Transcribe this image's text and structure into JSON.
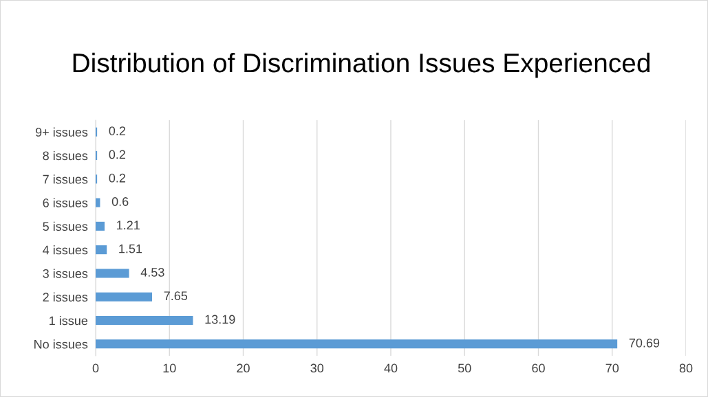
{
  "chart_data": {
    "type": "bar",
    "orientation": "horizontal",
    "title": "Distribution of Discrimination Issues Experienced",
    "categories": [
      "9+ issues",
      "8 issues",
      "7 issues",
      "6 issues",
      "5 issues",
      "4 issues",
      "3 issues",
      "2 issues",
      "1 issue",
      "No issues"
    ],
    "values": [
      0.2,
      0.2,
      0.2,
      0.6,
      1.21,
      1.51,
      4.53,
      7.65,
      13.19,
      70.69
    ],
    "color": "#5b9bd5",
    "xlim": [
      0,
      80
    ],
    "xticks": [
      0,
      10,
      20,
      30,
      40,
      50,
      60,
      70,
      80
    ],
    "grid": "x",
    "data_labels": true,
    "legend": false
  }
}
